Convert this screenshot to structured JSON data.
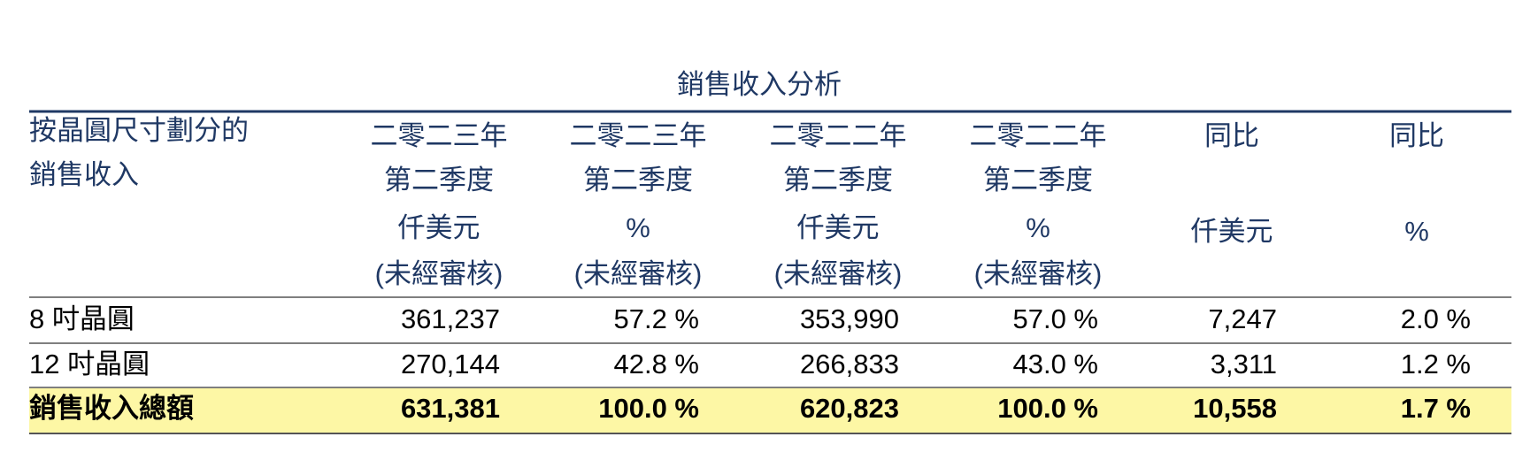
{
  "table": {
    "title": "銷售收入分析",
    "header": [
      {
        "lines": [
          "按晶圓尺寸劃分的",
          "銷售收入"
        ]
      },
      {
        "lines": [
          "二零二三年",
          "第二季度",
          "仟美元",
          "(未經審核)"
        ]
      },
      {
        "lines": [
          "二零二三年",
          "第二季度",
          "%",
          "(未經審核)"
        ]
      },
      {
        "lines": [
          "二零二二年",
          "第二季度",
          "仟美元",
          "(未經審核)"
        ]
      },
      {
        "lines": [
          "二零二二年",
          "第二季度",
          "%",
          "(未經審核)"
        ]
      },
      {
        "lines": [
          "同比",
          "仟美元"
        ]
      },
      {
        "lines": [
          "同比",
          "%"
        ]
      }
    ],
    "rows": [
      [
        "8 吋晶圓",
        "361,237",
        "57.2 %",
        "353,990",
        "57.0 %",
        "7,247",
        "2.0 %"
      ],
      [
        "12 吋晶圓",
        "270,144",
        "42.8 %",
        "266,833",
        "43.0 %",
        "3,311",
        "1.2 %"
      ],
      [
        "銷售收入總額",
        "631,381",
        "100.0 %",
        "620,823",
        "100.0 %",
        "10,558",
        "1.7 %"
      ]
    ]
  }
}
